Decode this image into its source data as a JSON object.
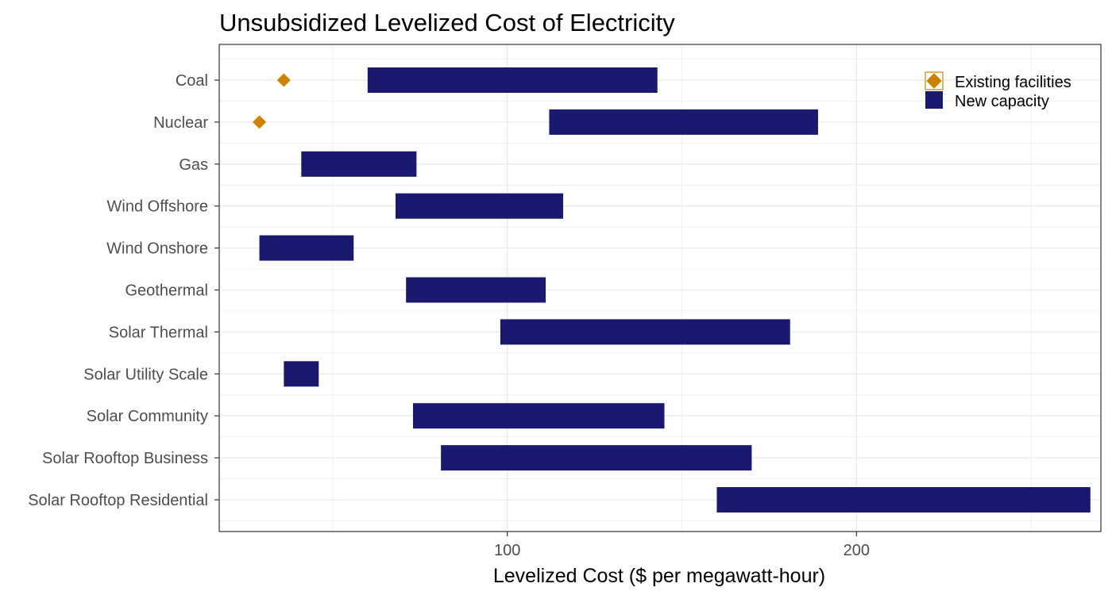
{
  "chart_data": {
    "type": "bar",
    "orientation": "horizontal-range",
    "title": "Unsubsidized Levelized Cost of Electricity",
    "xlabel": "Levelized Cost ($ per megawatt-hour)",
    "ylabel": "",
    "xlim": [
      17,
      270
    ],
    "xticks": [
      100,
      200
    ],
    "grid": true,
    "legend_position": "top-right",
    "categories": [
      "Coal",
      "Nuclear",
      "Gas",
      "Wind Offshore",
      "Wind Onshore",
      "Geothermal",
      "Solar Thermal",
      "Solar Utility Scale",
      "Solar Community",
      "Solar Rooftop Business",
      "Solar Rooftop Residential"
    ],
    "series": [
      {
        "name": "New capacity",
        "kind": "range",
        "color": "#191970",
        "low": [
          60,
          112,
          41,
          68,
          29,
          71,
          98,
          36,
          73,
          81,
          160
        ],
        "high": [
          143,
          189,
          74,
          116,
          56,
          111,
          181,
          46,
          145,
          170,
          267
        ]
      },
      {
        "name": "Existing facilities",
        "kind": "point",
        "marker": "diamond",
        "color": "#cc8400",
        "values": [
          36,
          29,
          null,
          null,
          null,
          null,
          null,
          null,
          null,
          null,
          null
        ]
      }
    ]
  }
}
